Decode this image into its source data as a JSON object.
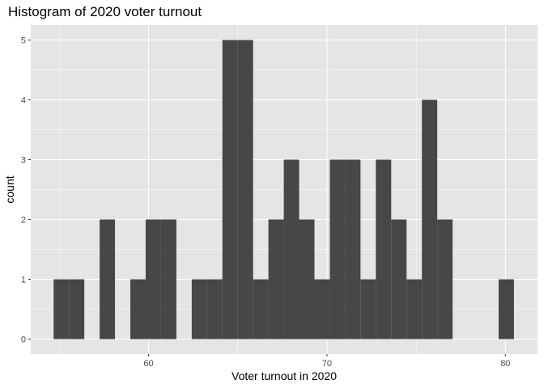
{
  "chart_data": {
    "type": "bar",
    "subtype": "histogram",
    "title": "Histogram of 2020 voter turnout",
    "xlabel": "Voter turnout in 2020",
    "ylabel": "count",
    "bin_width": 0.86,
    "bins": [
      {
        "x0": 54.68,
        "x1": 55.54,
        "count": 1
      },
      {
        "x0": 55.54,
        "x1": 56.4,
        "count": 1
      },
      {
        "x0": 56.4,
        "x1": 57.26,
        "count": 0
      },
      {
        "x0": 57.26,
        "x1": 58.12,
        "count": 2
      },
      {
        "x0": 58.12,
        "x1": 58.98,
        "count": 0
      },
      {
        "x0": 58.98,
        "x1": 59.84,
        "count": 1
      },
      {
        "x0": 59.84,
        "x1": 60.7,
        "count": 2
      },
      {
        "x0": 60.7,
        "x1": 61.56,
        "count": 2
      },
      {
        "x0": 61.56,
        "x1": 62.42,
        "count": 0
      },
      {
        "x0": 62.42,
        "x1": 63.28,
        "count": 1
      },
      {
        "x0": 63.28,
        "x1": 64.14,
        "count": 1
      },
      {
        "x0": 64.14,
        "x1": 65.0,
        "count": 5
      },
      {
        "x0": 65.0,
        "x1": 65.86,
        "count": 5
      },
      {
        "x0": 65.86,
        "x1": 66.72,
        "count": 1
      },
      {
        "x0": 66.72,
        "x1": 67.58,
        "count": 2
      },
      {
        "x0": 67.58,
        "x1": 68.44,
        "count": 3
      },
      {
        "x0": 68.44,
        "x1": 69.3,
        "count": 2
      },
      {
        "x0": 69.3,
        "x1": 70.16,
        "count": 1
      },
      {
        "x0": 70.16,
        "x1": 71.02,
        "count": 3
      },
      {
        "x0": 71.02,
        "x1": 71.88,
        "count": 3
      },
      {
        "x0": 71.88,
        "x1": 72.74,
        "count": 1
      },
      {
        "x0": 72.74,
        "x1": 73.6,
        "count": 3
      },
      {
        "x0": 73.6,
        "x1": 74.46,
        "count": 2
      },
      {
        "x0": 74.46,
        "x1": 75.32,
        "count": 1
      },
      {
        "x0": 75.32,
        "x1": 76.18,
        "count": 4
      },
      {
        "x0": 76.18,
        "x1": 77.04,
        "count": 2
      },
      {
        "x0": 77.04,
        "x1": 77.9,
        "count": 0
      },
      {
        "x0": 77.9,
        "x1": 78.76,
        "count": 0
      },
      {
        "x0": 78.76,
        "x1": 79.62,
        "count": 0
      },
      {
        "x0": 79.62,
        "x1": 80.48,
        "count": 1
      }
    ],
    "xlim": [
      53.4,
      81.8
    ],
    "ylim": [
      -0.25,
      5.25
    ],
    "x_ticks": [
      60,
      70,
      80
    ],
    "x_tick_labels": [
      "60",
      "70",
      "80"
    ],
    "y_ticks": [
      0,
      1,
      2,
      3,
      4,
      5
    ],
    "y_tick_labels": [
      "0",
      "1",
      "2",
      "3",
      "4",
      "5"
    ],
    "grid": true,
    "legend": "none",
    "colors": {
      "bar_fill": "#474747",
      "panel_background": "#e5e5e5",
      "gridline": "#ffffff"
    }
  }
}
